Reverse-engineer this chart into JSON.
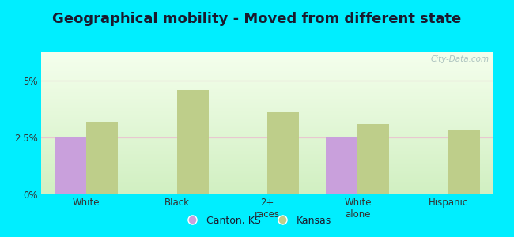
{
  "title": "Geographical mobility - Moved from different state",
  "categories": [
    "White",
    "Black",
    "2+\nraces",
    "White\nalone",
    "Hispanic"
  ],
  "canton_values": [
    2.5,
    0,
    0,
    2.5,
    0
  ],
  "kansas_values": [
    3.2,
    4.6,
    3.6,
    3.1,
    2.85
  ],
  "canton_color": "#c9a0dc",
  "kansas_color": "#bece8a",
  "background_outer": "#00eeff",
  "ylim": [
    0,
    6.25
  ],
  "yticks": [
    0,
    2.5,
    5.0
  ],
  "ytick_labels": [
    "0%",
    "2.5%",
    "5%"
  ],
  "grid_color": "#e8c8d0",
  "bar_width": 0.35,
  "legend_canton": "Canton, KS",
  "legend_kansas": "Kansas",
  "title_fontsize": 13,
  "watermark": "City-Data.com"
}
